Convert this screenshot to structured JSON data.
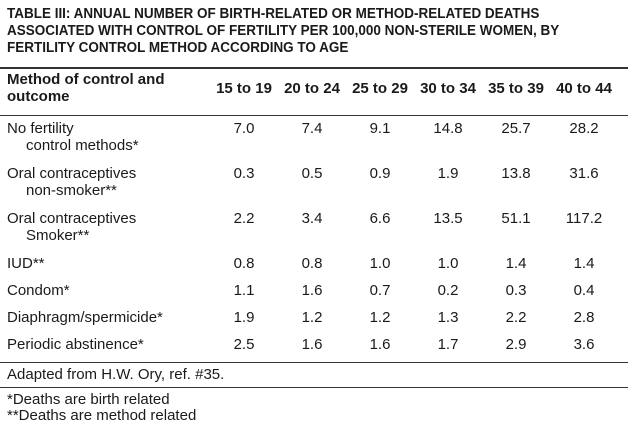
{
  "title_lines": [
    "TABLE III: ANNUAL NUMBER OF BIRTH-RELATED OR METHOD-RELATED DEATHS",
    "ASSOCIATED WITH CONTROL OF FERTILITY PER 100,000 NON-STERILE WOMEN, BY",
    "FERTILITY CONTROL METHOD ACCORDING TO AGE"
  ],
  "header": {
    "label_line1": "Method of control and",
    "label_line2": "outcome",
    "ages": [
      "15 to 19",
      "20 to 24",
      "25 to 29",
      "30 to 34",
      "35 to 39",
      "40 to 44"
    ]
  },
  "rows": [
    {
      "line1": "No fertility",
      "line2": "control methods*",
      "values": [
        "7.0",
        "7.4",
        "9.1",
        "14.8",
        "25.7",
        "28.2"
      ]
    },
    {
      "line1": "Oral contraceptives",
      "line2": "non-smoker**",
      "values": [
        "0.3",
        "0.5",
        "0.9",
        "1.9",
        "13.8",
        "31.6"
      ]
    },
    {
      "line1": "Oral contraceptives",
      "line2": "Smoker**",
      "values": [
        "2.2",
        "3.4",
        "6.6",
        "13.5",
        "51.1",
        "117.2"
      ]
    },
    {
      "line1": "IUD**",
      "line2": "",
      "values": [
        "0.8",
        "0.8",
        "1.0",
        "1.0",
        "1.4",
        "1.4"
      ]
    },
    {
      "line1": "Condom*",
      "line2": "",
      "values": [
        "1.1",
        "1.6",
        "0.7",
        "0.2",
        "0.3",
        "0.4"
      ]
    },
    {
      "line1": "Diaphragm/spermicide*",
      "line2": "",
      "values": [
        "1.9",
        "1.2",
        "1.2",
        "1.3",
        "2.2",
        "2.8"
      ]
    },
    {
      "line1": "Periodic abstinence*",
      "line2": "",
      "values": [
        "2.5",
        "1.6",
        "1.6",
        "1.7",
        "2.9",
        "3.6"
      ]
    }
  ],
  "source_note": "Adapted from H.W. Ory, ref. #35.",
  "footnotes": [
    "*Deaths are birth related",
    "**Deaths are method related"
  ]
}
